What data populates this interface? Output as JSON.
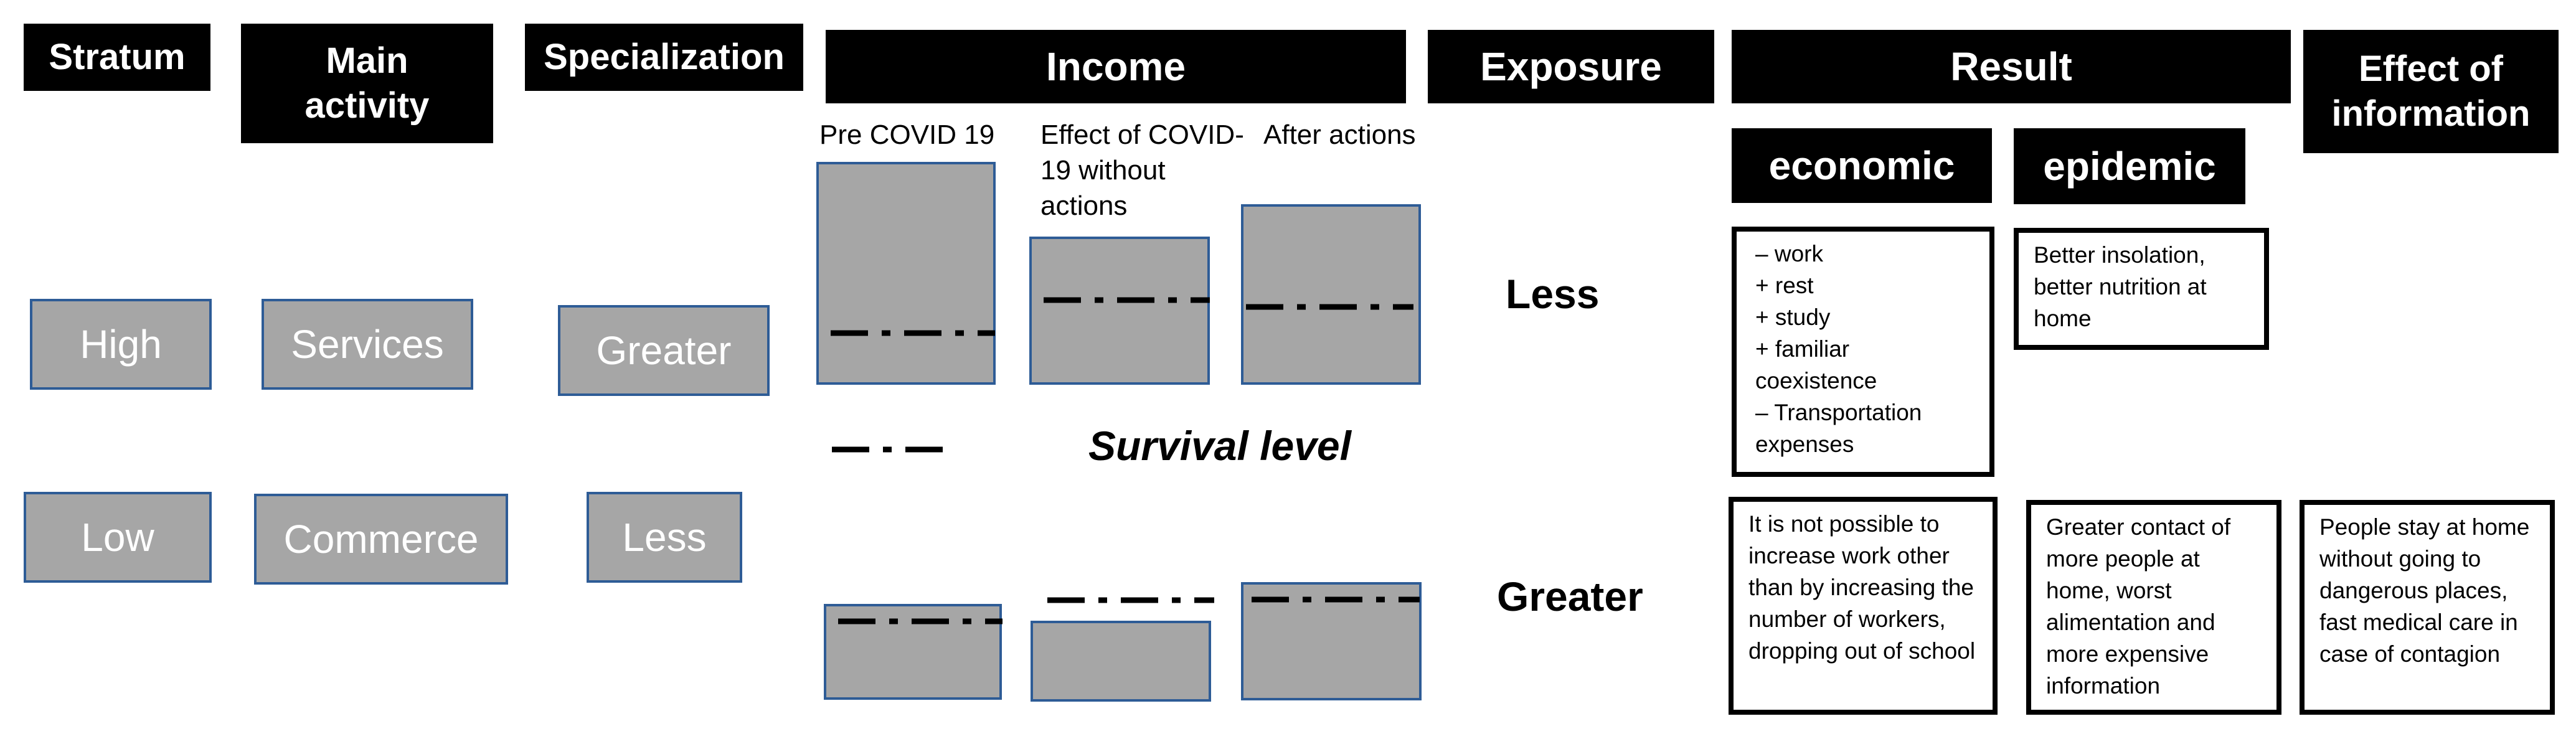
{
  "headers": {
    "stratum": "Stratum",
    "main_activity": "Main activity",
    "specialization": "Specialization",
    "income": "Income",
    "exposure": "Exposure",
    "result": "Result",
    "effect_of_information": "Effect of information",
    "economic": "economic",
    "epidemic": "epidemic"
  },
  "rows": {
    "high": {
      "stratum": "High",
      "activity": "Services",
      "specialization": "Greater",
      "exposure": "Less"
    },
    "low": {
      "stratum": "Low",
      "activity": "Commerce",
      "specialization": "Less",
      "exposure": "Greater"
    }
  },
  "income_labels": {
    "pre": "Pre COVID 19",
    "effect": "Effect of COVID-19 without actions",
    "after": "After actions"
  },
  "legend": {
    "survival_level": "Survival level"
  },
  "results": {
    "high_economic": [
      "– work",
      "+ rest",
      "+ study",
      "+  familiar coexistence",
      "– Transportation expenses"
    ],
    "high_epidemic": "Better insolation, better nutrition at home",
    "low_economic": "It is not possible to increase work other than by increasing the number of workers, dropping out of school",
    "low_epidemic": "Greater contact of more people at home, worst alimentation and more expensive information",
    "low_information": "People stay at home without going to dangerous places, fast medical care in case of contagion"
  },
  "colors": {
    "box_fill": "#a6a6a6",
    "box_border": "#2e5c96",
    "header_fill": "#000000"
  }
}
